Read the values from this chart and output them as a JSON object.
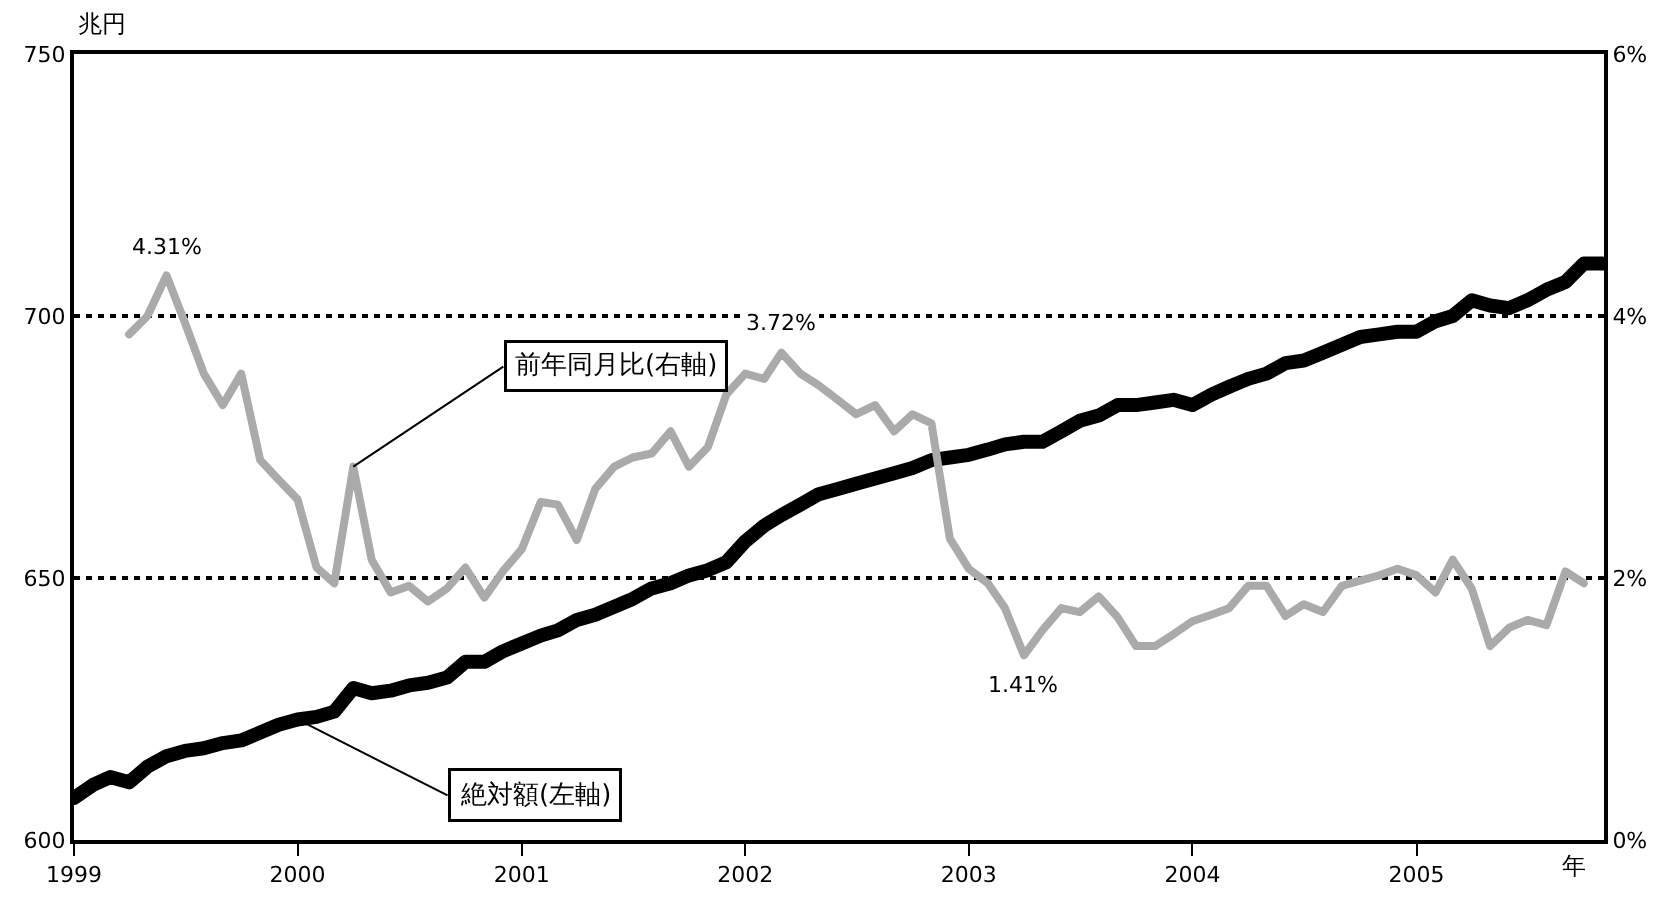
{
  "chart_data": {
    "type": "line",
    "ylabel": "兆円",
    "xlabel": "年",
    "x": [
      "1999-01",
      "1999-02",
      "1999-03",
      "1999-04",
      "1999-05",
      "1999-06",
      "1999-07",
      "1999-08",
      "1999-09",
      "1999-10",
      "1999-11",
      "1999-12",
      "2000-01",
      "2000-02",
      "2000-03",
      "2000-04",
      "2000-05",
      "2000-06",
      "2000-07",
      "2000-08",
      "2000-09",
      "2000-10",
      "2000-11",
      "2000-12",
      "2001-01",
      "2001-02",
      "2001-03",
      "2001-04",
      "2001-05",
      "2001-06",
      "2001-07",
      "2001-08",
      "2001-09",
      "2001-10",
      "2001-11",
      "2001-12",
      "2002-01",
      "2002-02",
      "2002-03",
      "2002-04",
      "2002-05",
      "2002-06",
      "2002-07",
      "2002-08",
      "2002-09",
      "2002-10",
      "2002-11",
      "2002-12",
      "2003-01",
      "2003-02",
      "2003-03",
      "2003-04",
      "2003-05",
      "2003-06",
      "2003-07",
      "2003-08",
      "2003-09",
      "2003-10",
      "2003-11",
      "2003-12",
      "2004-01",
      "2004-02",
      "2004-03",
      "2004-04",
      "2004-05",
      "2004-06",
      "2004-07",
      "2004-08",
      "2004-09",
      "2004-10",
      "2004-11",
      "2004-12",
      "2005-01",
      "2005-02",
      "2005-03",
      "2005-04",
      "2005-05",
      "2005-06",
      "2005-07",
      "2005-08",
      "2005-09",
      "2005-10",
      "2005-11"
    ],
    "series": [
      {
        "name": "絶対額(左軸)",
        "color": "#000000",
        "values": [
          608,
          610.5,
          612,
          611,
          614,
          616,
          617,
          617.5,
          618.5,
          619,
          620.5,
          622,
          623,
          623.5,
          624.5,
          629,
          628,
          628.5,
          629.5,
          630,
          631,
          634,
          634,
          636,
          637.5,
          639,
          640,
          642,
          643,
          644.5,
          646,
          648,
          649,
          650.5,
          651.5,
          653,
          657,
          660,
          662,
          664,
          666,
          667,
          668,
          669,
          670,
          671,
          672.5,
          673,
          673.5,
          674.5,
          675.5,
          676,
          676,
          678,
          680,
          681,
          683,
          683,
          683.5,
          684,
          683,
          685,
          686.5,
          688,
          689,
          691,
          691.5,
          693,
          694.5,
          696,
          696.5,
          697,
          697,
          699,
          700,
          703,
          702,
          701.5,
          703,
          705,
          706.5,
          710,
          710
        ]
      },
      {
        "name": "前年同月比(右軸)",
        "color": "#aaaaaa",
        "axis": "y2",
        "values": [
          null,
          null,
          null,
          3.86,
          4.0,
          4.31,
          3.95,
          3.56,
          3.32,
          3.56,
          2.9,
          2.75,
          2.6,
          2.08,
          1.96,
          2.85,
          2.14,
          1.89,
          1.94,
          1.82,
          1.92,
          2.08,
          1.85,
          2.05,
          2.22,
          2.58,
          2.56,
          2.29,
          2.68,
          2.85,
          2.92,
          2.95,
          3.12,
          2.85,
          3.0,
          3.4,
          3.56,
          3.52,
          3.72,
          3.56,
          3.47,
          3.36,
          3.25,
          3.32,
          3.12,
          3.25,
          3.18,
          2.3,
          2.07,
          1.96,
          1.77,
          1.41,
          1.6,
          1.77,
          1.74,
          1.86,
          1.7,
          1.48,
          1.48,
          1.57,
          1.67,
          1.72,
          1.77,
          1.94,
          1.94,
          1.71,
          1.8,
          1.74,
          1.94,
          1.98,
          2.02,
          2.07,
          2.02,
          1.89,
          2.14,
          1.92,
          1.48,
          1.62,
          1.68,
          1.64,
          2.05,
          1.96,
          null
        ],
        "value_labels": [
          null,
          null,
          null,
          null,
          null,
          "4.31%",
          null,
          null,
          null,
          null,
          null,
          null,
          null,
          null,
          null,
          null,
          null,
          null,
          null,
          null,
          null,
          null,
          null,
          null,
          null,
          null,
          null,
          null,
          null,
          null,
          null,
          null,
          null,
          null,
          null,
          null,
          null,
          null,
          "3.72%",
          null,
          null,
          null,
          null,
          null,
          null,
          null,
          null,
          null,
          null,
          null,
          null,
          "1.41%",
          null,
          null,
          null,
          null,
          null,
          null,
          null,
          null,
          null,
          null,
          null,
          null,
          null,
          null,
          null,
          null,
          null,
          null,
          null,
          null,
          null,
          null,
          null,
          null,
          null,
          null,
          null,
          null,
          null,
          null,
          null
        ]
      }
    ],
    "xlim": [
      "1999-01-01",
      "2005-11-03"
    ],
    "xticks": [
      {
        "value": "1999-01-01",
        "label": "1999"
      },
      {
        "value": "2000-01-01",
        "label": "2000"
      },
      {
        "value": "2001-01-01",
        "label": "2001"
      },
      {
        "value": "2002-01-01",
        "label": "2002"
      },
      {
        "value": "2003-01-01",
        "label": "2003"
      },
      {
        "value": "2004-01-01",
        "label": "2004"
      },
      {
        "value": "2005-01-01",
        "label": "2005"
      }
    ],
    "ylim": [
      600,
      750
    ],
    "yticks": [
      600,
      650,
      700,
      750
    ],
    "y2lim": [
      0,
      6
    ],
    "y2ticks": [
      {
        "value": 0,
        "label": "0%"
      },
      {
        "value": 2,
        "label": "2%"
      },
      {
        "value": 4,
        "label": "4%"
      },
      {
        "value": 6,
        "label": "6%"
      }
    ],
    "grid": "y",
    "line_style": "solid",
    "marker": "none",
    "legend": false
  }
}
